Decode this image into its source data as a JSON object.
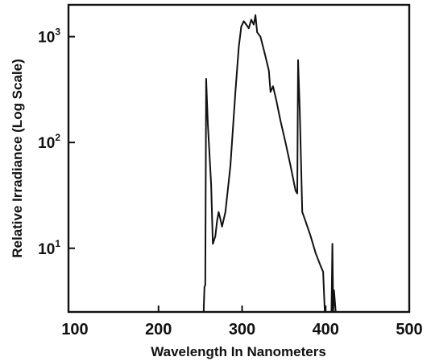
{
  "chart_data": {
    "type": "line",
    "title": "",
    "xlabel": "Wavelength In Nanometers",
    "ylabel": "Relative Irradiance (Log Scale)",
    "xlim": [
      100,
      500
    ],
    "ylim": [
      2.5,
      2000
    ],
    "yscale": "log",
    "grid": false,
    "legend": "none",
    "x_ticks": [
      {
        "value": 100,
        "label": "100"
      },
      {
        "value": 200,
        "label": "200"
      },
      {
        "value": 300,
        "label": "300"
      },
      {
        "value": 400,
        "label": "400"
      },
      {
        "value": 500,
        "label": "500"
      }
    ],
    "y_ticks": [
      {
        "value": 10,
        "label": "10",
        "exp": "1"
      },
      {
        "value": 100,
        "label": "10",
        "exp": "2"
      },
      {
        "value": 1000,
        "label": "10",
        "exp": "3"
      }
    ],
    "line_color": "#111111",
    "series": [
      {
        "x": [
          254,
          255,
          256,
          257,
          259,
          263,
          265,
          268,
          270,
          272,
          274,
          276,
          280,
          286,
          292,
          296,
          299,
          302,
          305,
          308,
          311,
          314,
          316,
          318,
          322,
          327,
          332,
          334,
          337,
          341,
          346,
          352,
          358,
          364,
          366,
          367,
          369,
          372,
          376,
          382,
          388,
          394,
          397,
          399,
          403,
          407,
          408,
          409,
          410,
          412,
          414
        ],
        "y": [
          2.5,
          4.3,
          4.5,
          400,
          150,
          40,
          11,
          13,
          18,
          22,
          19,
          16,
          22,
          60,
          300,
          800,
          1250,
          1400,
          1300,
          1200,
          1450,
          1300,
          1600,
          1100,
          1000,
          700,
          480,
          300,
          340,
          250,
          160,
          100,
          60,
          35,
          33,
          600,
          200,
          22,
          18,
          13,
          9,
          6.8,
          6,
          2.5,
          2.5,
          2.5,
          11,
          2.5,
          4,
          2.5,
          2.5
        ]
      }
    ]
  }
}
